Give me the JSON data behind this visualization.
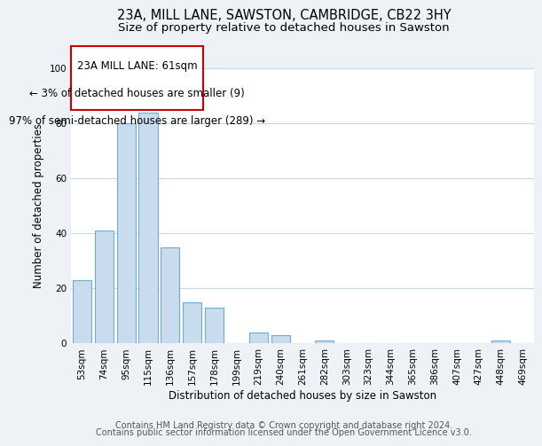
{
  "title": "23A, MILL LANE, SAWSTON, CAMBRIDGE, CB22 3HY",
  "subtitle": "Size of property relative to detached houses in Sawston",
  "xlabel": "Distribution of detached houses by size in Sawston",
  "ylabel": "Number of detached properties",
  "categories": [
    "53sqm",
    "74sqm",
    "95sqm",
    "115sqm",
    "136sqm",
    "157sqm",
    "178sqm",
    "199sqm",
    "219sqm",
    "240sqm",
    "261sqm",
    "282sqm",
    "303sqm",
    "323sqm",
    "344sqm",
    "365sqm",
    "386sqm",
    "407sqm",
    "427sqm",
    "448sqm",
    "469sqm"
  ],
  "values": [
    23,
    41,
    80,
    84,
    35,
    15,
    13,
    0,
    4,
    3,
    0,
    1,
    0,
    0,
    0,
    0,
    0,
    0,
    0,
    1,
    0
  ],
  "bar_color": "#c8dced",
  "bar_edge_color": "#6aaed6",
  "highlight_edge_color": "#cc0000",
  "ylim": [
    0,
    100
  ],
  "yticks": [
    0,
    20,
    40,
    60,
    80,
    100
  ],
  "annotation_line1": "23A MILL LANE: 61sqm",
  "annotation_line2": "← 3% of detached houses are smaller (9)",
  "annotation_line3": "97% of semi-detached houses are larger (289) →",
  "footer_line1": "Contains HM Land Registry data © Crown copyright and database right 2024.",
  "footer_line2": "Contains public sector information licensed under the Open Government Licence v3.0.",
  "bg_color": "#eef2f7",
  "plot_bg_color": "#ffffff",
  "grid_color": "#c8d8e8",
  "title_fontsize": 10.5,
  "subtitle_fontsize": 9.5,
  "axis_label_fontsize": 8.5,
  "tick_fontsize": 7.5,
  "annotation_fontsize": 8.5,
  "footer_fontsize": 7
}
